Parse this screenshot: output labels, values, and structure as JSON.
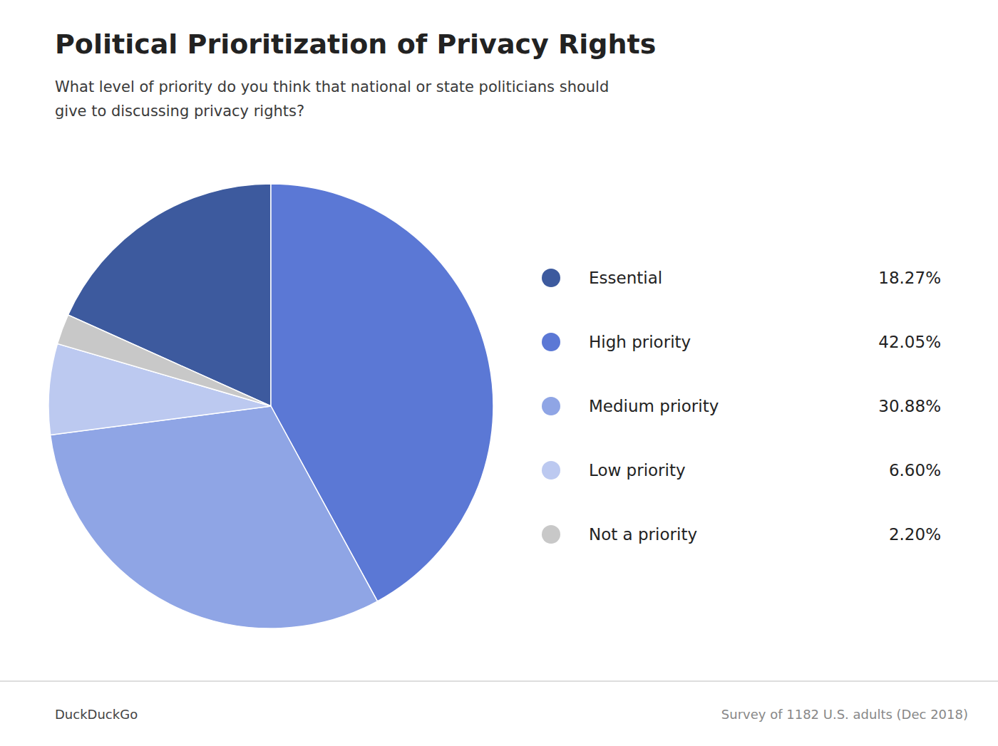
{
  "chart_data": {
    "type": "pie",
    "title": "Political Prioritization of Privacy Rights",
    "subtitle": "What level of priority do you think that national or state politicians should\ngive to discussing privacy rights?",
    "categories": [
      "Essential",
      "High priority",
      "Medium priority",
      "Low priority",
      "Not a priority"
    ],
    "values": [
      18.27,
      42.05,
      30.88,
      6.6,
      2.2
    ],
    "value_labels": [
      "18.27%",
      "42.05%",
      "30.88%",
      "6.60%",
      "2.20%"
    ],
    "colors": [
      "#3d5a9e",
      "#5b78d5",
      "#8fa5e5",
      "#bcc9f0",
      "#c8c8c8"
    ],
    "legend": "right",
    "annotations": [
      "DuckDuckGo",
      "Survey of 1182 U.S. adults (Dec 2018)"
    ]
  }
}
